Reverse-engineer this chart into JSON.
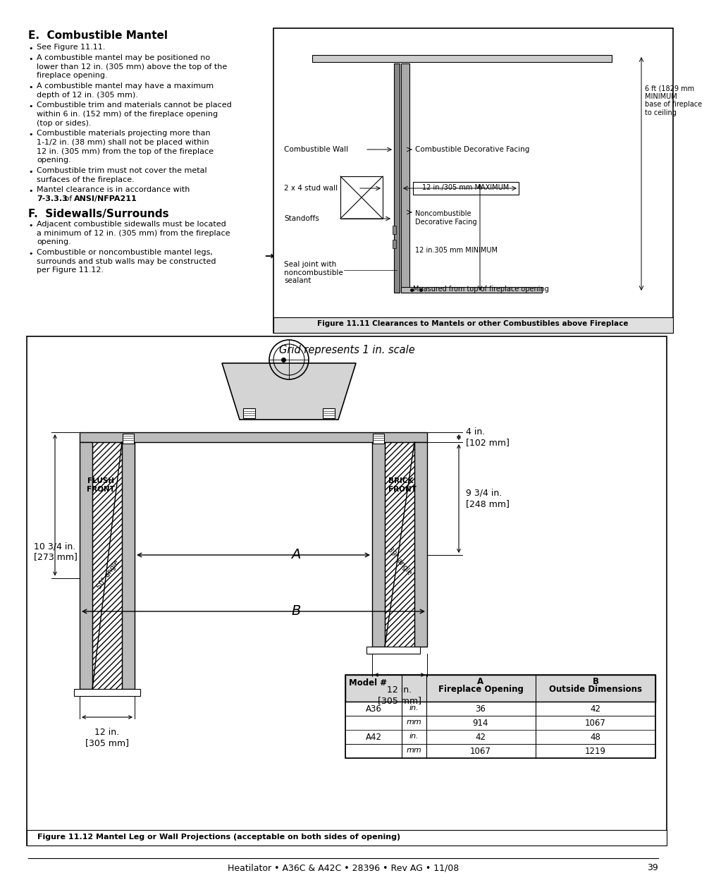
{
  "page_bg": "#ffffff",
  "title_e": "E. Combustible Mantel",
  "title_f": "F.  Sidewalls/Surrounds",
  "footer": "Heatilator • A36C & A42C • 28396 • Rev AG • 11/08",
  "page_num": "39",
  "fig1_caption": "Figure 11.11 Clearances to Mantels or other Combustibles above Fireplace",
  "fig2_caption": "Figure 11.12 Mantel Leg or Wall Projections (acceptable on both sides of opening)",
  "fig2_title": "Grid represents 1 in. scale",
  "fig1_6ft": "6 ft (1829 mm\nMINIMUM\nbase of fireplace\nto ceiling",
  "fig1_combwall": "Combustible Wall",
  "fig1_combfacing": "Combustible Decorative Facing",
  "fig1_stud": "2 x 4 stud wall",
  "fig1_12max": "12 in./305 mm MAXIMUM",
  "fig1_standoffs": "Standoffs",
  "fig1_noncomb": "Noncombustible\nDecorative Facing",
  "fig1_12min": "12 in.305 mm MINIMUM",
  "fig1_seal": "Seal joint with\nnoncombustible\nsealant",
  "fig1_measured": "Measured from top of fireplace opening"
}
